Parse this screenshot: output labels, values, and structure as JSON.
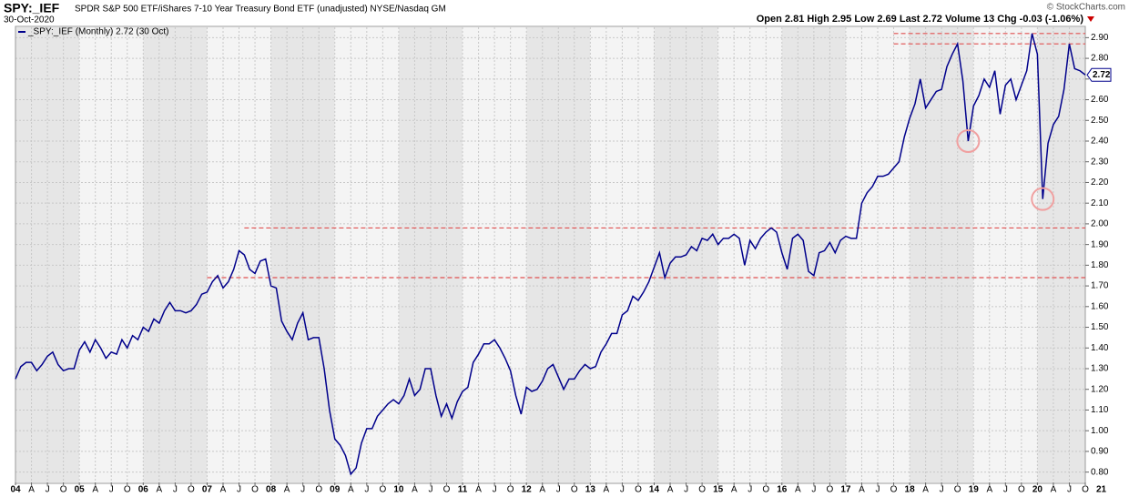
{
  "chart_data": {
    "type": "line",
    "title": "SPY:_IEF",
    "subtitle": "SPDR S&P 500 ETF/iShares 7-10 Year Treasury Bond ETF (unadjusted) NYSE/Nasdaq GM",
    "date": "30-Oct-2020",
    "source": "© StockCharts.com",
    "quote": "Open 2.81  High 2.95  Low 2.69  Last 2.72  Volume 13  Chg -0.03 (-1.06%)",
    "last_label": "2.72",
    "last_value": 2.72,
    "x": [
      "2004-01",
      "2004-02",
      "2004-03",
      "2004-04",
      "2004-05",
      "2004-06",
      "2004-07",
      "2004-08",
      "2004-09",
      "2004-10",
      "2004-11",
      "2004-12",
      "2005-01",
      "2005-02",
      "2005-03",
      "2005-04",
      "2005-05",
      "2005-06",
      "2005-07",
      "2005-08",
      "2005-09",
      "2005-10",
      "2005-11",
      "2005-12",
      "2006-01",
      "2006-02",
      "2006-03",
      "2006-04",
      "2006-05",
      "2006-06",
      "2006-07",
      "2006-08",
      "2006-09",
      "2006-10",
      "2006-11",
      "2006-12",
      "2007-01",
      "2007-02",
      "2007-03",
      "2007-04",
      "2007-05",
      "2007-06",
      "2007-07",
      "2007-08",
      "2007-09",
      "2007-10",
      "2007-11",
      "2007-12",
      "2008-01",
      "2008-02",
      "2008-03",
      "2008-04",
      "2008-05",
      "2008-06",
      "2008-07",
      "2008-08",
      "2008-09",
      "2008-10",
      "2008-11",
      "2008-12",
      "2009-01",
      "2009-02",
      "2009-03",
      "2009-04",
      "2009-05",
      "2009-06",
      "2009-07",
      "2009-08",
      "2009-09",
      "2009-10",
      "2009-11",
      "2009-12",
      "2010-01",
      "2010-02",
      "2010-03",
      "2010-04",
      "2010-05",
      "2010-06",
      "2010-07",
      "2010-08",
      "2010-09",
      "2010-10",
      "2010-11",
      "2010-12",
      "2011-01",
      "2011-02",
      "2011-03",
      "2011-04",
      "2011-05",
      "2011-06",
      "2011-07",
      "2011-08",
      "2011-09",
      "2011-10",
      "2011-11",
      "2011-12",
      "2012-01",
      "2012-02",
      "2012-03",
      "2012-04",
      "2012-05",
      "2012-06",
      "2012-07",
      "2012-08",
      "2012-09",
      "2012-10",
      "2012-11",
      "2012-12",
      "2013-01",
      "2013-02",
      "2013-03",
      "2013-04",
      "2013-05",
      "2013-06",
      "2013-07",
      "2013-08",
      "2013-09",
      "2013-10",
      "2013-11",
      "2013-12",
      "2014-01",
      "2014-02",
      "2014-03",
      "2014-04",
      "2014-05",
      "2014-06",
      "2014-07",
      "2014-08",
      "2014-09",
      "2014-10",
      "2014-11",
      "2014-12",
      "2015-01",
      "2015-02",
      "2015-03",
      "2015-04",
      "2015-05",
      "2015-06",
      "2015-07",
      "2015-08",
      "2015-09",
      "2015-10",
      "2015-11",
      "2015-12",
      "2016-01",
      "2016-02",
      "2016-03",
      "2016-04",
      "2016-05",
      "2016-06",
      "2016-07",
      "2016-08",
      "2016-09",
      "2016-10",
      "2016-11",
      "2016-12",
      "2017-01",
      "2017-02",
      "2017-03",
      "2017-04",
      "2017-05",
      "2017-06",
      "2017-07",
      "2017-08",
      "2017-09",
      "2017-10",
      "2017-11",
      "2017-12",
      "2018-01",
      "2018-02",
      "2018-03",
      "2018-04",
      "2018-05",
      "2018-06",
      "2018-07",
      "2018-08",
      "2018-09",
      "2018-10",
      "2018-11",
      "2018-12",
      "2019-01",
      "2019-02",
      "2019-03",
      "2019-04",
      "2019-05",
      "2019-06",
      "2019-07",
      "2019-08",
      "2019-09",
      "2019-10",
      "2019-11",
      "2019-12",
      "2020-01",
      "2020-02",
      "2020-03",
      "2020-04",
      "2020-05",
      "2020-06",
      "2020-07",
      "2020-08",
      "2020-09",
      "2020-10"
    ],
    "series": [
      {
        "name": "_SPY:_IEF (Monthly) 2.72 (30 Oct)",
        "color": "#00008b",
        "values": [
          1.25,
          1.31,
          1.33,
          1.33,
          1.29,
          1.32,
          1.36,
          1.38,
          1.32,
          1.29,
          1.3,
          1.3,
          1.39,
          1.43,
          1.38,
          1.44,
          1.4,
          1.35,
          1.38,
          1.37,
          1.44,
          1.4,
          1.46,
          1.44,
          1.5,
          1.48,
          1.54,
          1.52,
          1.58,
          1.62,
          1.58,
          1.58,
          1.57,
          1.58,
          1.61,
          1.66,
          1.67,
          1.72,
          1.75,
          1.69,
          1.72,
          1.78,
          1.87,
          1.85,
          1.78,
          1.76,
          1.82,
          1.83,
          1.7,
          1.69,
          1.53,
          1.48,
          1.44,
          1.52,
          1.57,
          1.44,
          1.45,
          1.45,
          1.3,
          1.1,
          0.96,
          0.93,
          0.88,
          0.79,
          0.82,
          0.94,
          1.01,
          1.01,
          1.07,
          1.1,
          1.13,
          1.15,
          1.13,
          1.17,
          1.25,
          1.17,
          1.2,
          1.3,
          1.3,
          1.17,
          1.07,
          1.13,
          1.06,
          1.14,
          1.19,
          1.21,
          1.33,
          1.37,
          1.42,
          1.42,
          1.44,
          1.4,
          1.35,
          1.29,
          1.17,
          1.08,
          1.21,
          1.19,
          1.2,
          1.24,
          1.3,
          1.32,
          1.26,
          1.2,
          1.25,
          1.25,
          1.29,
          1.32,
          1.3,
          1.31,
          1.38,
          1.42,
          1.47,
          1.47,
          1.56,
          1.58,
          1.65,
          1.63,
          1.67,
          1.72,
          1.79,
          1.86,
          1.74,
          1.81,
          1.84,
          1.84,
          1.85,
          1.89,
          1.87,
          1.93,
          1.92,
          1.95,
          1.9,
          1.93,
          1.93,
          1.95,
          1.93,
          1.8,
          1.92,
          1.88,
          1.93,
          1.96,
          1.98,
          1.96,
          1.86,
          1.78,
          1.93,
          1.95,
          1.92,
          1.77,
          1.75,
          1.86,
          1.87,
          1.91,
          1.86,
          1.92,
          1.94,
          1.93,
          1.93,
          2.1,
          2.15,
          2.18,
          2.23,
          2.23,
          2.24,
          2.27,
          2.3,
          2.42,
          2.51,
          2.58,
          2.7,
          2.56,
          2.6,
          2.64,
          2.65,
          2.76,
          2.82,
          2.87,
          2.69,
          2.4,
          2.57,
          2.62,
          2.7,
          2.66,
          2.74,
          2.53,
          2.67,
          2.7,
          2.6,
          2.67,
          2.74,
          2.92,
          2.82,
          2.12,
          2.39,
          2.48,
          2.52,
          2.65,
          2.87,
          2.75,
          2.74,
          2.72
        ]
      }
    ],
    "ylim": [
      0.75,
      2.95
    ],
    "yticks": [
      {
        "value": 0.8,
        "label": "0.80"
      },
      {
        "value": 0.9,
        "label": "0.90"
      },
      {
        "value": 1.0,
        "label": "1.00"
      },
      {
        "value": 1.1,
        "label": "1.10"
      },
      {
        "value": 1.2,
        "label": "1.20"
      },
      {
        "value": 1.3,
        "label": "1.30"
      },
      {
        "value": 1.4,
        "label": "1.40"
      },
      {
        "value": 1.5,
        "label": "1.50"
      },
      {
        "value": 1.6,
        "label": "1.60"
      },
      {
        "value": 1.7,
        "label": "1.70"
      },
      {
        "value": 1.8,
        "label": "1.80"
      },
      {
        "value": 1.9,
        "label": "1.90"
      },
      {
        "value": 2.0,
        "label": "2.00"
      },
      {
        "value": 2.1,
        "label": "2.10"
      },
      {
        "value": 2.2,
        "label": "2.20"
      },
      {
        "value": 2.3,
        "label": "2.30"
      },
      {
        "value": 2.4,
        "label": "2.40"
      },
      {
        "value": 2.5,
        "label": "2.50"
      },
      {
        "value": 2.6,
        "label": "2.60"
      },
      {
        "value": 2.7,
        "label": "2.70"
      },
      {
        "value": 2.8,
        "label": "2.80"
      },
      {
        "value": 2.9,
        "label": "2.90"
      }
    ],
    "xticks": [
      {
        "value": "2004-01",
        "label": "04"
      },
      {
        "value": "2004-04",
        "label": "A"
      },
      {
        "value": "2004-07",
        "label": "J"
      },
      {
        "value": "2004-10",
        "label": "O"
      },
      {
        "value": "2005-01",
        "label": "05"
      },
      {
        "value": "2005-04",
        "label": "A"
      },
      {
        "value": "2005-07",
        "label": "J"
      },
      {
        "value": "2005-10",
        "label": "O"
      },
      {
        "value": "2006-01",
        "label": "06"
      },
      {
        "value": "2006-04",
        "label": "A"
      },
      {
        "value": "2006-07",
        "label": "J"
      },
      {
        "value": "2006-10",
        "label": "O"
      },
      {
        "value": "2007-01",
        "label": "07"
      },
      {
        "value": "2007-04",
        "label": "A"
      },
      {
        "value": "2007-07",
        "label": "J"
      },
      {
        "value": "2007-10",
        "label": "O"
      },
      {
        "value": "2008-01",
        "label": "08"
      },
      {
        "value": "2008-04",
        "label": "A"
      },
      {
        "value": "2008-07",
        "label": "J"
      },
      {
        "value": "2008-10",
        "label": "O"
      },
      {
        "value": "2009-01",
        "label": "09"
      },
      {
        "value": "2009-04",
        "label": "A"
      },
      {
        "value": "2009-07",
        "label": "J"
      },
      {
        "value": "2009-10",
        "label": "O"
      },
      {
        "value": "2010-01",
        "label": "10"
      },
      {
        "value": "2010-04",
        "label": "A"
      },
      {
        "value": "2010-07",
        "label": "J"
      },
      {
        "value": "2010-10",
        "label": "O"
      },
      {
        "value": "2011-01",
        "label": "11"
      },
      {
        "value": "2011-04",
        "label": "A"
      },
      {
        "value": "2011-07",
        "label": "J"
      },
      {
        "value": "2011-10",
        "label": "O"
      },
      {
        "value": "2012-01",
        "label": "12"
      },
      {
        "value": "2012-04",
        "label": "A"
      },
      {
        "value": "2012-07",
        "label": "J"
      },
      {
        "value": "2012-10",
        "label": "O"
      },
      {
        "value": "2013-01",
        "label": "13"
      },
      {
        "value": "2013-04",
        "label": "A"
      },
      {
        "value": "2013-07",
        "label": "J"
      },
      {
        "value": "2013-10",
        "label": "O"
      },
      {
        "value": "2014-01",
        "label": "14"
      },
      {
        "value": "2014-04",
        "label": "A"
      },
      {
        "value": "2014-07",
        "label": "J"
      },
      {
        "value": "2014-10",
        "label": "O"
      },
      {
        "value": "2015-01",
        "label": "15"
      },
      {
        "value": "2015-04",
        "label": "A"
      },
      {
        "value": "2015-07",
        "label": "J"
      },
      {
        "value": "2015-10",
        "label": "O"
      },
      {
        "value": "2016-01",
        "label": "16"
      },
      {
        "value": "2016-04",
        "label": "A"
      },
      {
        "value": "2016-07",
        "label": "J"
      },
      {
        "value": "2016-10",
        "label": "O"
      },
      {
        "value": "2017-01",
        "label": "17"
      },
      {
        "value": "2017-04",
        "label": "A"
      },
      {
        "value": "2017-07",
        "label": "J"
      },
      {
        "value": "2017-10",
        "label": "O"
      },
      {
        "value": "2018-01",
        "label": "18"
      },
      {
        "value": "2018-04",
        "label": "A"
      },
      {
        "value": "2018-07",
        "label": "J"
      },
      {
        "value": "2018-10",
        "label": "O"
      },
      {
        "value": "2019-01",
        "label": "19"
      },
      {
        "value": "2019-04",
        "label": "A"
      },
      {
        "value": "2019-07",
        "label": "J"
      },
      {
        "value": "2019-10",
        "label": "O"
      },
      {
        "value": "2020-01",
        "label": "20"
      },
      {
        "value": "2020-04",
        "label": "A"
      },
      {
        "value": "2020-07",
        "label": "J"
      },
      {
        "value": "2020-10",
        "label": "O"
      },
      {
        "value": "2021-01",
        "label": "21"
      }
    ],
    "grid": true,
    "hlines": [
      {
        "value": 1.74,
        "from": "2007-01",
        "color": "#e05050"
      },
      {
        "value": 1.98,
        "from": "2007-08",
        "color": "#e05050"
      },
      {
        "value": 2.87,
        "from": "2017-10",
        "color": "#e05050"
      },
      {
        "value": 2.92,
        "from": "2017-10",
        "color": "#e05050"
      }
    ],
    "circles": [
      {
        "x": "2018-12",
        "value": 2.4,
        "color": "#f0a0a0"
      },
      {
        "x": "2020-02",
        "value": 2.12,
        "color": "#f0a0a0"
      }
    ]
  }
}
